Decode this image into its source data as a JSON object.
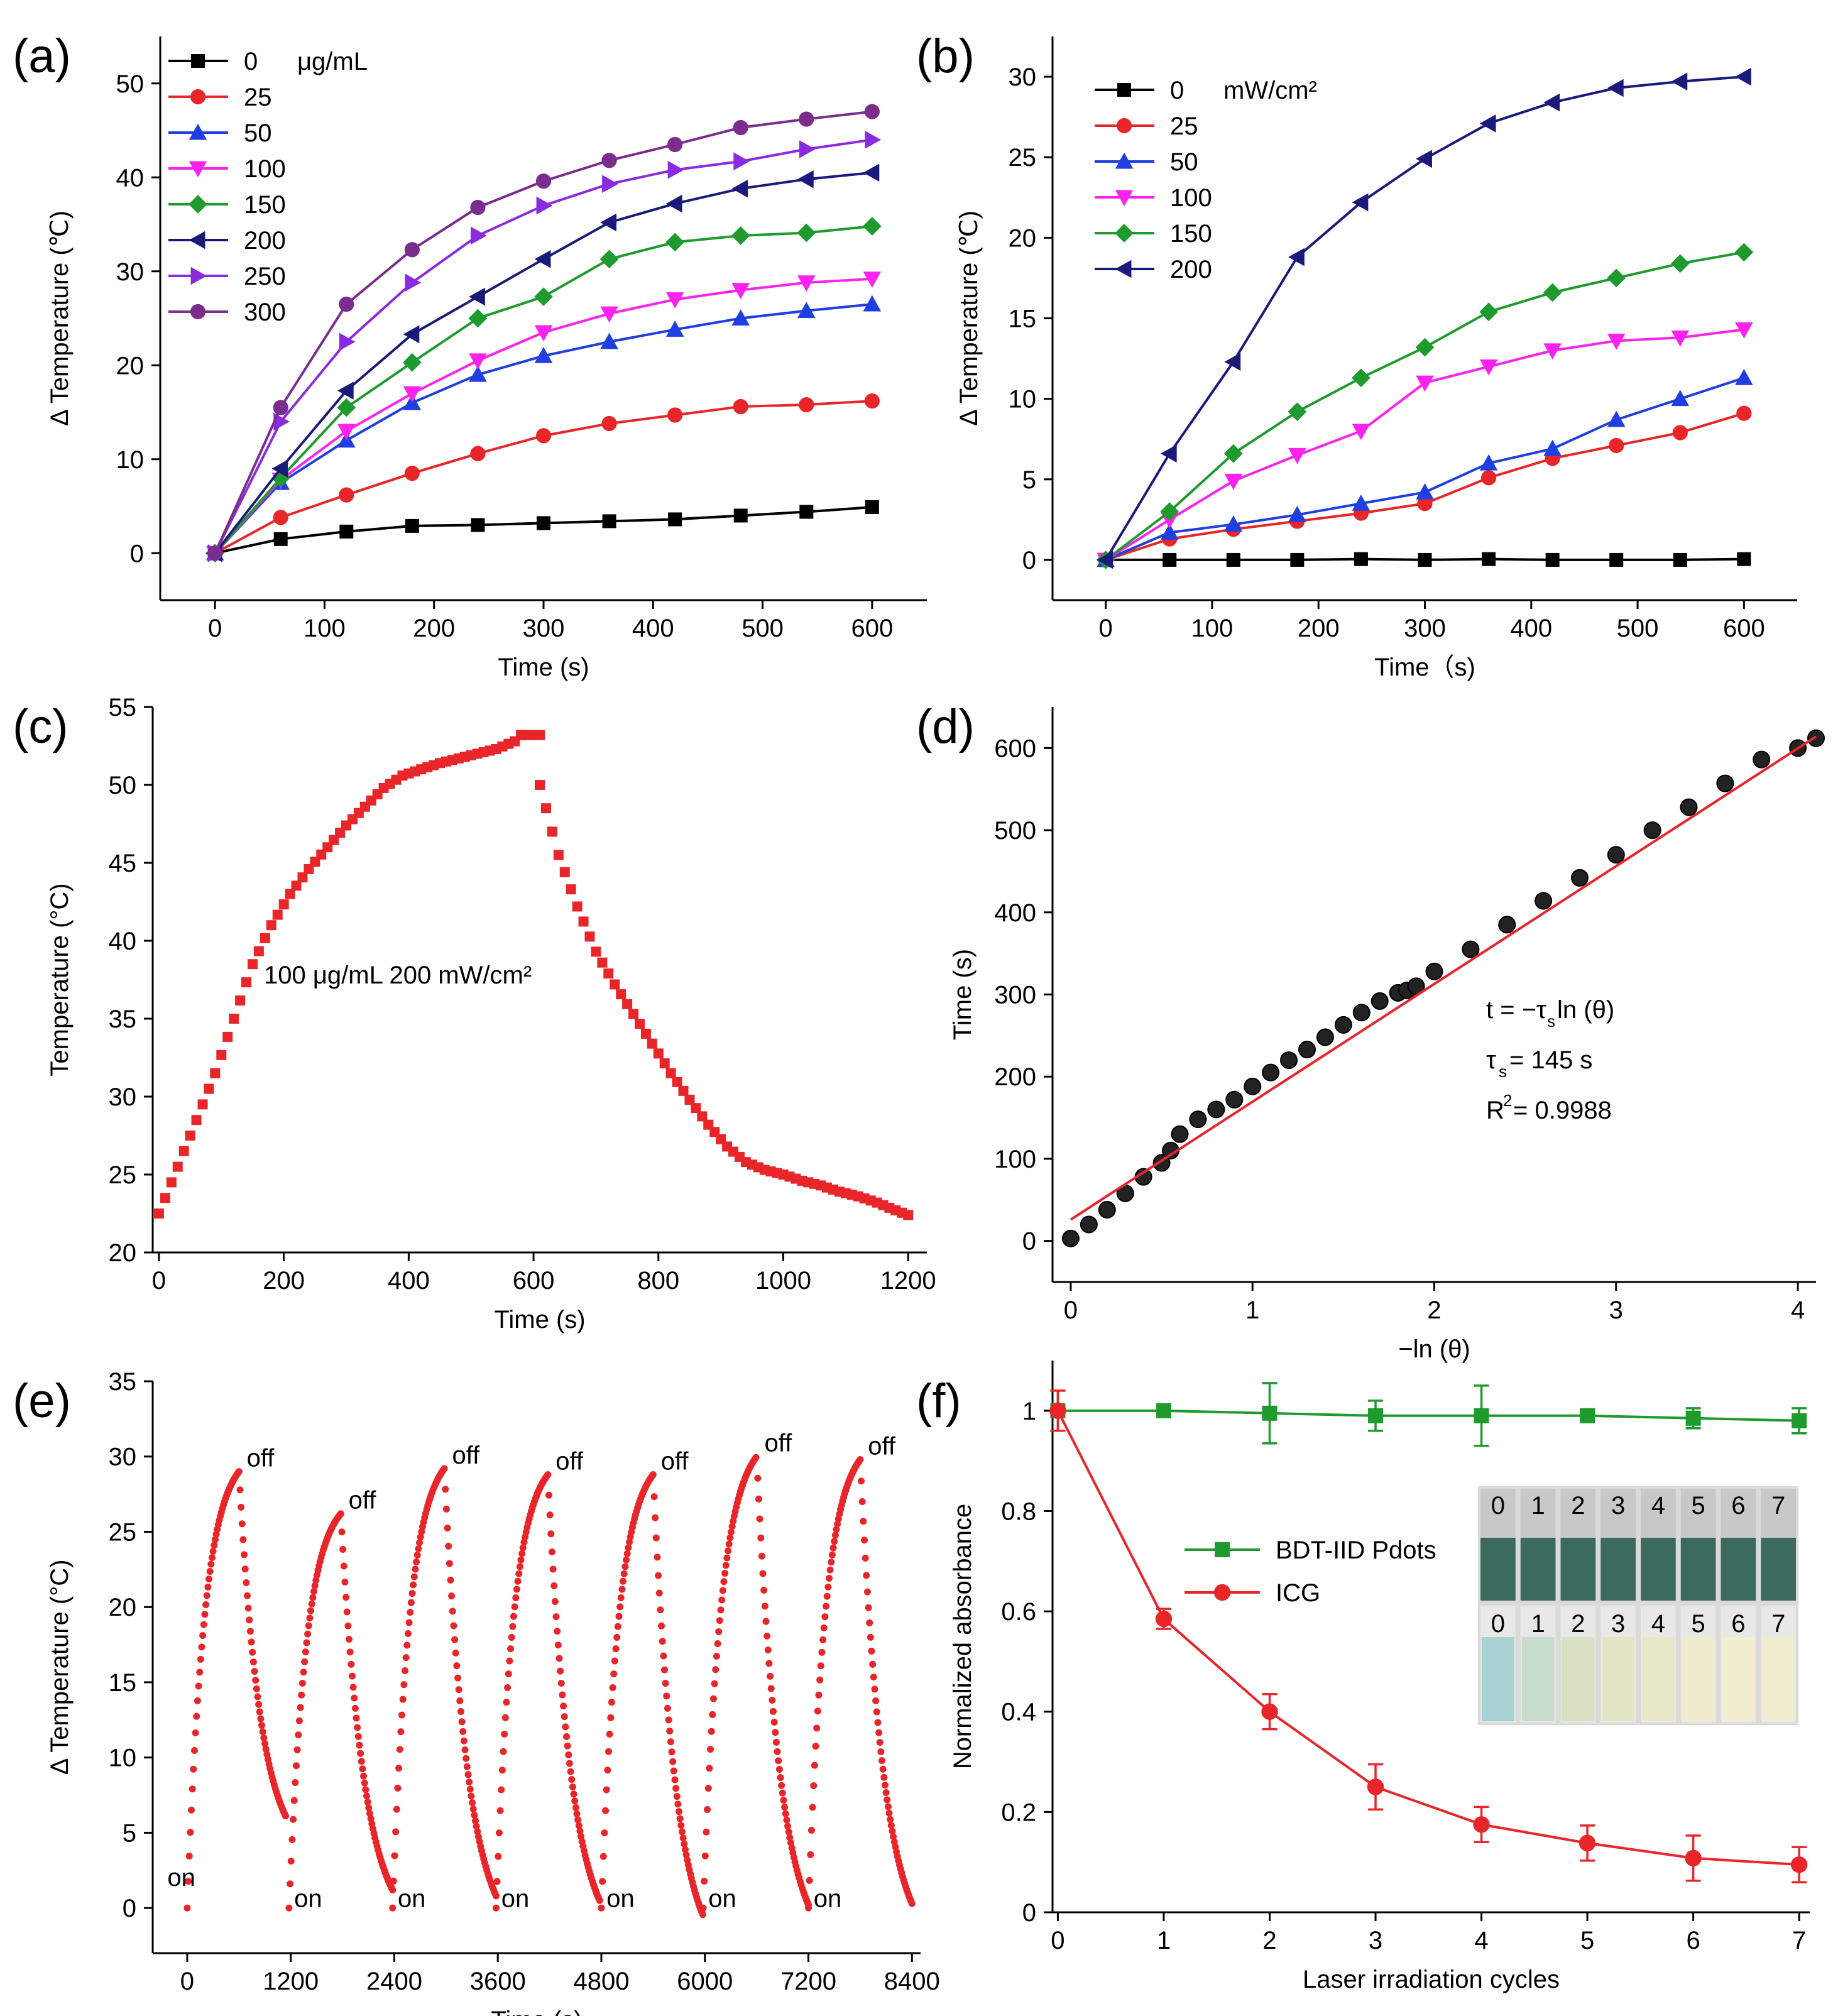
{
  "chart_data": [
    {
      "panel": "(a)",
      "type": "line",
      "xlabel": "Time (s)",
      "ylabel": "Δ Temperature (℃)",
      "xlim": [
        -50,
        650
      ],
      "ylim": [
        -5,
        55
      ],
      "xticks": [
        0,
        100,
        200,
        300,
        400,
        500,
        600
      ],
      "yticks": [
        0,
        10,
        20,
        30,
        40,
        50
      ],
      "legend_position": "top-left",
      "legend_unit": "μg/mL",
      "x": [
        0,
        60,
        120,
        180,
        240,
        300,
        360,
        420,
        480,
        540,
        600
      ],
      "series": [
        {
          "name": "0",
          "color": "#000000",
          "marker": "square",
          "values": [
            0,
            1.5,
            2.3,
            2.9,
            3.0,
            3.2,
            3.4,
            3.6,
            4.0,
            4.4,
            4.9
          ]
        },
        {
          "name": "25",
          "color": "#e8262a",
          "marker": "circle",
          "values": [
            0,
            3.8,
            6.2,
            8.5,
            10.6,
            12.5,
            13.8,
            14.7,
            15.6,
            15.8,
            16.2
          ]
        },
        {
          "name": "50",
          "color": "#1f3fe0",
          "marker": "triangle-up",
          "values": [
            0,
            7.5,
            12.0,
            16.0,
            19.0,
            21.0,
            22.5,
            23.8,
            25.0,
            25.8,
            26.5
          ]
        },
        {
          "name": "100",
          "color": "#ff22ee",
          "marker": "triangle-down",
          "values": [
            0,
            7.8,
            13.0,
            17.0,
            20.5,
            23.5,
            25.5,
            27.0,
            28.0,
            28.8,
            29.2
          ]
        },
        {
          "name": "150",
          "color": "#1e9a2e",
          "marker": "diamond",
          "values": [
            0,
            8.0,
            15.5,
            20.3,
            25.0,
            27.3,
            31.3,
            33.1,
            33.8,
            34.1,
            34.8
          ]
        },
        {
          "name": "200",
          "color": "#1a1a7a",
          "marker": "triangle-left",
          "values": [
            0,
            9.0,
            17.3,
            23.3,
            27.3,
            31.3,
            35.2,
            37.2,
            38.8,
            39.8,
            40.5
          ]
        },
        {
          "name": "250",
          "color": "#8a2be2",
          "marker": "triangle-right",
          "values": [
            0,
            14.0,
            22.5,
            28.8,
            33.8,
            37.0,
            39.3,
            40.8,
            41.7,
            43.0,
            44.0
          ]
        },
        {
          "name": "300",
          "color": "#7b2d8e",
          "marker": "circle",
          "values": [
            0,
            15.5,
            26.5,
            32.3,
            36.8,
            39.6,
            41.8,
            43.5,
            45.3,
            46.2,
            47.0
          ]
        }
      ]
    },
    {
      "panel": "(b)",
      "type": "line",
      "xlabel": "Time（s)",
      "ylabel": "Δ Temperature (℃)",
      "xlim": [
        -50,
        650
      ],
      "ylim": [
        -2.5,
        32.5
      ],
      "xticks": [
        0,
        100,
        200,
        300,
        400,
        500,
        600
      ],
      "yticks": [
        0,
        5,
        10,
        15,
        20,
        25,
        30
      ],
      "legend_position": "top-left",
      "legend_unit": "mW/cm²",
      "x": [
        0,
        60,
        120,
        180,
        240,
        300,
        360,
        420,
        480,
        540,
        600
      ],
      "series": [
        {
          "name": "0",
          "color": "#000000",
          "marker": "square",
          "values": [
            0,
            0,
            0,
            0,
            0.05,
            0,
            0.05,
            0,
            0,
            0,
            0.05
          ]
        },
        {
          "name": "25",
          "color": "#e8262a",
          "marker": "circle",
          "values": [
            0,
            1.3,
            1.9,
            2.4,
            2.9,
            3.5,
            5.1,
            6.3,
            7.1,
            7.9,
            9.1
          ]
        },
        {
          "name": "50",
          "color": "#1f3fe0",
          "marker": "triangle-up",
          "values": [
            0,
            1.7,
            2.2,
            2.8,
            3.5,
            4.2,
            6.0,
            6.9,
            8.7,
            10.0,
            11.3
          ]
        },
        {
          "name": "100",
          "color": "#ff22ee",
          "marker": "triangle-down",
          "values": [
            0,
            2.5,
            4.9,
            6.5,
            8.0,
            11.0,
            12.0,
            13.0,
            13.6,
            13.8,
            14.3
          ]
        },
        {
          "name": "150",
          "color": "#1e9a2e",
          "marker": "diamond",
          "values": [
            0,
            3.0,
            6.6,
            9.2,
            11.3,
            13.2,
            15.4,
            16.6,
            17.5,
            18.4,
            19.1
          ]
        },
        {
          "name": "200",
          "color": "#1a1a7a",
          "marker": "triangle-left",
          "values": [
            0,
            6.6,
            12.3,
            18.8,
            22.2,
            24.9,
            27.1,
            28.4,
            29.3,
            29.7,
            30.0
          ]
        }
      ]
    },
    {
      "panel": "(c)",
      "type": "scatter",
      "xlabel": "Time (s)",
      "ylabel": "Temperature (°C)",
      "xlim": [
        -10,
        1230
      ],
      "ylim": [
        20,
        55
      ],
      "xticks": [
        0,
        200,
        400,
        600,
        800,
        1000,
        1200
      ],
      "yticks": [
        20,
        25,
        30,
        35,
        40,
        45,
        50,
        55
      ],
      "annotation": "100 μg/mL 200 mW/cm²",
      "color": "#e8262a",
      "heating_curve": {
        "x": [
          0,
          30,
          60,
          90,
          120,
          150,
          180,
          210,
          240,
          270,
          300,
          330,
          360,
          390,
          420,
          450,
          480,
          510,
          540,
          570,
          580
        ],
        "y": [
          22.5,
          25.5,
          28.5,
          31.5,
          35.0,
          38.5,
          41.0,
          43.0,
          44.6,
          46.0,
          47.4,
          48.6,
          49.8,
          50.6,
          51.0,
          51.4,
          51.7,
          52.0,
          52.3,
          52.8,
          53.2
        ]
      },
      "plateau_curve": {
        "x": [
          580,
          610
        ],
        "y": [
          53.2,
          53.2
        ]
      },
      "cooling_curve": {
        "x": [
          610,
          640,
          670,
          700,
          730,
          760,
          790,
          820,
          850,
          880,
          910,
          940,
          970,
          1000,
          1030,
          1060,
          1090,
          1120,
          1150,
          1180,
          1200
        ],
        "y": [
          50.0,
          45.5,
          42.2,
          39.3,
          37.2,
          35.3,
          33.4,
          31.5,
          29.8,
          28.2,
          26.8,
          25.8,
          25.3,
          25.0,
          24.6,
          24.3,
          23.9,
          23.6,
          23.2,
          22.7,
          22.4
        ]
      }
    },
    {
      "panel": "(d)",
      "type": "scatter",
      "xlabel": "−ln (θ)",
      "ylabel": "Time (s)",
      "xlim": [
        -0.1,
        4.1
      ],
      "ylim": [
        -50,
        650
      ],
      "xticks": [
        0,
        1,
        2,
        3,
        4
      ],
      "yticks": [
        0,
        100,
        200,
        300,
        400,
        500,
        600
      ],
      "fit_line": {
        "x": [
          0,
          4.1
        ],
        "y": [
          26,
          614
        ],
        "color": "#e8262a"
      },
      "points": {
        "x": [
          0,
          0.1,
          0.2,
          0.3,
          0.4,
          0.5,
          0.55,
          0.6,
          0.7,
          0.8,
          0.9,
          1.0,
          1.1,
          1.2,
          1.3,
          1.4,
          1.5,
          1.6,
          1.7,
          1.8,
          1.85,
          1.9,
          2.0,
          2.2,
          2.4,
          2.6,
          2.8,
          3.0,
          3.2,
          3.4,
          3.6,
          3.8,
          4.0,
          4.1
        ],
        "y": [
          3,
          20,
          38,
          58,
          78,
          95,
          110,
          130,
          148,
          160,
          172,
          188,
          205,
          220,
          233,
          248,
          263,
          278,
          292,
          302,
          305,
          310,
          328,
          355,
          385,
          414,
          442,
          470,
          500,
          528,
          557,
          586,
          600,
          612
        ],
        "color": "#000000"
      },
      "annotations": [
        "t = −τ",
        "s",
        " ln (θ)",
        "τ",
        "s",
        "= 145 s",
        "R",
        "2",
        "= 0.9988"
      ]
    },
    {
      "panel": "(e)",
      "type": "scatter",
      "xlabel": "Time (s)",
      "ylabel": "Δ Temperature (°C)",
      "xlim": [
        -400,
        8500
      ],
      "ylim": [
        -3,
        35
      ],
      "xticks": [
        0,
        1200,
        2400,
        3600,
        4800,
        6000,
        7200,
        8400
      ],
      "yticks": [
        0,
        5,
        10,
        15,
        20,
        25,
        30,
        35
      ],
      "color": "#e8262a",
      "cycles": [
        {
          "start": 0,
          "peak_time": 600,
          "peak": 29.0,
          "end_time": 1150,
          "end": 6.0
        },
        {
          "start": 1180,
          "peak_time": 1780,
          "peak": 26.2,
          "end_time": 2380,
          "end": 1.2
        },
        {
          "start": 2380,
          "peak_time": 2980,
          "peak": 29.2,
          "end_time": 3580,
          "end": 0.8
        },
        {
          "start": 3580,
          "peak_time": 4180,
          "peak": 28.8,
          "end_time": 4780,
          "end": 0.5
        },
        {
          "start": 4800,
          "peak_time": 5400,
          "peak": 28.8,
          "end_time": 5980,
          "end": -0.5
        },
        {
          "start": 5980,
          "peak_time": 6600,
          "peak": 30.0,
          "end_time": 7200,
          "end": 0.2
        },
        {
          "start": 7200,
          "peak_time": 7800,
          "peak": 29.8,
          "end_time": 8400,
          "end": 0.3
        }
      ],
      "labels_on": [
        "on",
        "on",
        "on",
        "on",
        "on",
        "on",
        "on"
      ],
      "labels_off": [
        "off",
        "off",
        "off",
        "off",
        "off",
        "off",
        "off"
      ]
    },
    {
      "panel": "(f)",
      "type": "line",
      "xlabel": "Laser irradiation cycles",
      "ylabel": "Normalized absorbance",
      "xlim": [
        -0.05,
        7.1
      ],
      "ylim": [
        0,
        1.1
      ],
      "xticks": [
        0,
        1,
        2,
        3,
        4,
        5,
        6,
        7
      ],
      "yticks": [
        0.0,
        0.2,
        0.4,
        0.6,
        0.8,
        1.0
      ],
      "legend_position": "center-left",
      "x": [
        0,
        1,
        2,
        3,
        4,
        5,
        6,
        7
      ],
      "series": [
        {
          "name": "BDT-IID Pdots",
          "color": "#1e9a2e",
          "marker": "square",
          "values": [
            1.0,
            1.0,
            0.995,
            0.99,
            0.99,
            0.99,
            0.985,
            0.98
          ],
          "errors": [
            0.04,
            0.01,
            0.06,
            0.03,
            0.06,
            0.01,
            0.02,
            0.025
          ]
        },
        {
          "name": "ICG",
          "color": "#e8262a",
          "marker": "circle",
          "values": [
            1.0,
            0.585,
            0.4,
            0.25,
            0.175,
            0.138,
            0.108,
            0.095
          ],
          "errors": [
            0.04,
            0.02,
            0.035,
            0.045,
            0.035,
            0.035,
            0.045,
            0.035
          ]
        }
      ],
      "inset_top_labels": [
        "0",
        "1",
        "2",
        "3",
        "4",
        "5",
        "6",
        "7"
      ],
      "inset_bottom_labels": [
        "0",
        "1",
        "2",
        "3",
        "4",
        "5",
        "6",
        "7"
      ],
      "inset_bottom_colors": [
        "#a9d3d2",
        "#c7dccc",
        "#d8e1c4",
        "#e4e5c5",
        "#e8e8c8",
        "#efecce",
        "#f1eed2",
        "#f1ecd0"
      ]
    }
  ]
}
